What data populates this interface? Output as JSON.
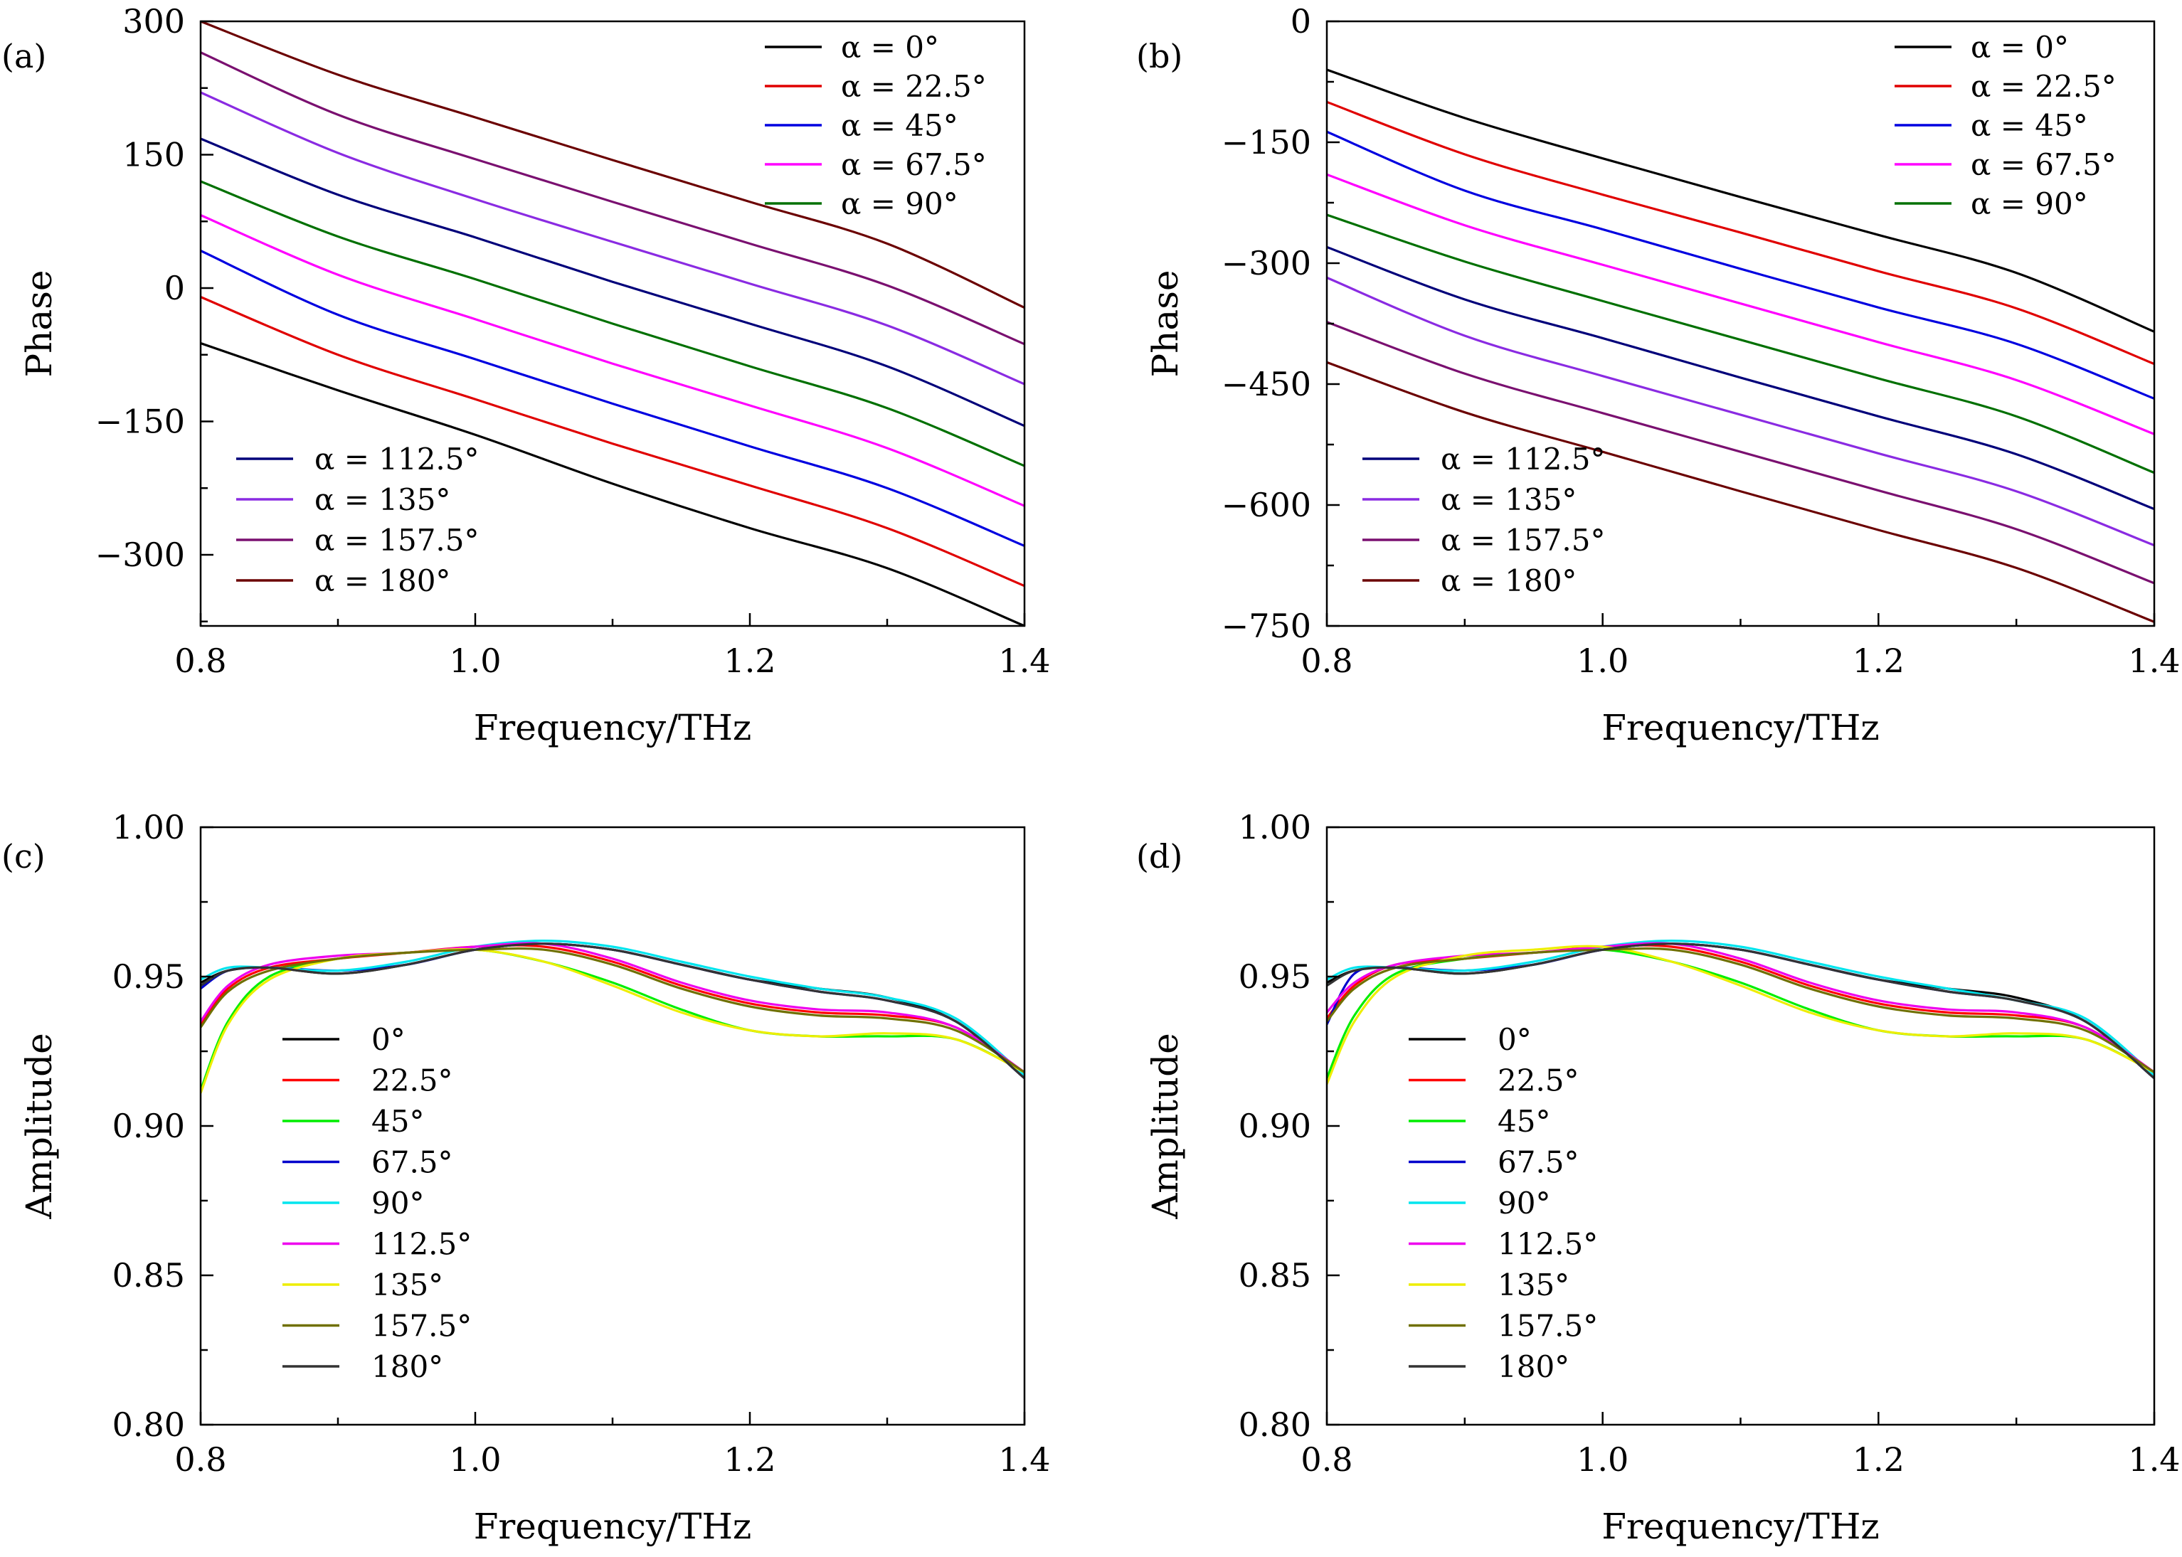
{
  "figure": {
    "panels": [
      "(a)",
      "(b)",
      "(c)",
      "(d)"
    ]
  },
  "chart_data": [
    {
      "panel": "(a)",
      "type": "line",
      "xlabel": "Frequency/THz",
      "ylabel": "Phase",
      "xlim": [
        0.8,
        1.4
      ],
      "ylim": [
        -380,
        300
      ],
      "xticks": [
        "0.8",
        "1.0",
        "1.2",
        "1.4"
      ],
      "yticks": [
        "300",
        "150",
        "0",
        "−150",
        "−300"
      ],
      "ytick_values": [
        300,
        150,
        0,
        -150,
        -300
      ],
      "grid": false,
      "legend": [
        {
          "position": "top-right",
          "entries": [
            "α = 0°",
            "α = 22.5°",
            "α = 45°",
            "α = 67.5°",
            "α = 90°"
          ]
        },
        {
          "position": "bottom-left",
          "entries": [
            "α = 112.5°",
            "α = 135°",
            "α = 157.5°",
            "α = 180°"
          ]
        }
      ],
      "x": [
        0.8,
        0.9,
        1.0,
        1.1,
        1.2,
        1.3,
        1.4
      ],
      "series": [
        {
          "name": "α = 0°",
          "color": "#000000",
          "values": [
            -62,
            -115,
            -165,
            -220,
            -270,
            -315,
            -380
          ]
        },
        {
          "name": "α = 22.5°",
          "color": "#e00000",
          "values": [
            -10,
            -75,
            -125,
            -175,
            -222,
            -270,
            -335
          ]
        },
        {
          "name": "α = 45°",
          "color": "#0000e0",
          "values": [
            42,
            -30,
            -80,
            -130,
            -178,
            -225,
            -290
          ]
        },
        {
          "name": "α = 67.5°",
          "color": "#ff00ff",
          "values": [
            82,
            15,
            -35,
            -85,
            -132,
            -180,
            -245
          ]
        },
        {
          "name": "α = 90°",
          "color": "#007000",
          "values": [
            120,
            58,
            10,
            -40,
            -88,
            -135,
            -200
          ]
        },
        {
          "name": "α = 112.5°",
          "color": "#00007a",
          "values": [
            168,
            105,
            57,
            7,
            -40,
            -88,
            -155
          ]
        },
        {
          "name": "α = 135°",
          "color": "#8a2be2",
          "values": [
            220,
            152,
            100,
            52,
            5,
            -42,
            -108
          ]
        },
        {
          "name": "α = 157.5°",
          "color": "#7a1070",
          "values": [
            265,
            195,
            145,
            97,
            50,
            3,
            -63
          ]
        },
        {
          "name": "α = 180°",
          "color": "#6b0000",
          "values": [
            300,
            240,
            192,
            144,
            97,
            50,
            -22
          ]
        }
      ]
    },
    {
      "panel": "(b)",
      "type": "line",
      "xlabel": "Frequency/THz",
      "ylabel": "Phase",
      "xlim": [
        0.8,
        1.4
      ],
      "ylim": [
        -750,
        0
      ],
      "xticks": [
        "0.8",
        "1.0",
        "1.2",
        "1.4"
      ],
      "yticks": [
        "0",
        "−150",
        "−300",
        "−450",
        "−600",
        "−750"
      ],
      "ytick_values": [
        0,
        -150,
        -300,
        -450,
        -600,
        -750
      ],
      "grid": false,
      "legend": [
        {
          "position": "top-right",
          "entries": [
            "α = 0°",
            "α = 22.5°",
            "α = 45°",
            "α = 67.5°",
            "α = 90°"
          ]
        },
        {
          "position": "bottom-left",
          "entries": [
            "α = 112.5°",
            "α = 135°",
            "α = 157.5°",
            "α = 180°"
          ]
        }
      ],
      "x": [
        0.8,
        0.9,
        1.0,
        1.1,
        1.2,
        1.3,
        1.4
      ],
      "series": [
        {
          "name": "α = 0°",
          "color": "#000000",
          "values": [
            -60,
            -120,
            -170,
            -218,
            -265,
            -312,
            -385
          ]
        },
        {
          "name": "α = 22.5°",
          "color": "#e00000",
          "values": [
            -100,
            -165,
            -215,
            -262,
            -310,
            -356,
            -425
          ]
        },
        {
          "name": "α = 45°",
          "color": "#0000e0",
          "values": [
            -137,
            -210,
            -258,
            -307,
            -355,
            -400,
            -468
          ]
        },
        {
          "name": "α = 67.5°",
          "color": "#ff00ff",
          "values": [
            -190,
            -253,
            -302,
            -350,
            -398,
            -445,
            -512
          ]
        },
        {
          "name": "α = 90°",
          "color": "#007000",
          "values": [
            -240,
            -298,
            -347,
            -395,
            -443,
            -490,
            -560
          ]
        },
        {
          "name": "α = 112.5°",
          "color": "#00007a",
          "values": [
            -280,
            -345,
            -393,
            -442,
            -490,
            -537,
            -605
          ]
        },
        {
          "name": "α = 135°",
          "color": "#8a2be2",
          "values": [
            -318,
            -390,
            -440,
            -488,
            -536,
            -583,
            -650
          ]
        },
        {
          "name": "α = 157.5°",
          "color": "#7a1070",
          "values": [
            -373,
            -437,
            -486,
            -534,
            -582,
            -630,
            -697
          ]
        },
        {
          "name": "α = 180°",
          "color": "#6b0000",
          "values": [
            -423,
            -485,
            -534,
            -583,
            -631,
            -678,
            -745
          ]
        }
      ]
    },
    {
      "panel": "(c)",
      "type": "line",
      "xlabel": "Frequency/THz",
      "ylabel": "Amplitude",
      "xlim": [
        0.8,
        1.4
      ],
      "ylim": [
        0.8,
        1.0
      ],
      "xticks": [
        "0.8",
        "1.0",
        "1.2",
        "1.4"
      ],
      "yticks": [
        "1.00",
        "0.95",
        "0.90",
        "0.85",
        "0.80"
      ],
      "ytick_values": [
        1.0,
        0.95,
        0.9,
        0.85,
        0.8
      ],
      "grid": false,
      "legend": [
        {
          "position": "left",
          "entries": [
            "0°",
            "22.5°",
            "45°",
            "67.5°",
            "90°",
            "112.5°",
            "135°",
            "157.5°",
            "180°"
          ]
        }
      ],
      "x": [
        0.8,
        0.82,
        0.85,
        0.9,
        0.95,
        1.0,
        1.05,
        1.1,
        1.15,
        1.2,
        1.25,
        1.3,
        1.35,
        1.4
      ],
      "series": [
        {
          "name": "0°",
          "color": "#000000",
          "values": [
            0.948,
            0.952,
            0.953,
            0.951,
            0.954,
            0.959,
            0.961,
            0.959,
            0.954,
            0.949,
            0.946,
            0.943,
            0.935,
            0.916
          ]
        },
        {
          "name": "22.5°",
          "color": "#ff0000",
          "values": [
            0.934,
            0.946,
            0.953,
            0.956,
            0.958,
            0.96,
            0.96,
            0.955,
            0.947,
            0.941,
            0.938,
            0.937,
            0.933,
            0.918
          ]
        },
        {
          "name": "45°",
          "color": "#00ee00",
          "values": [
            0.912,
            0.935,
            0.95,
            0.956,
            0.958,
            0.959,
            0.955,
            0.948,
            0.939,
            0.932,
            0.93,
            0.93,
            0.929,
            0.918
          ]
        },
        {
          "name": "67.5°",
          "color": "#0000cc",
          "values": [
            0.946,
            0.952,
            0.953,
            0.952,
            0.954,
            0.959,
            0.961,
            0.959,
            0.954,
            0.949,
            0.945,
            0.942,
            0.935,
            0.916
          ]
        },
        {
          "name": "90°",
          "color": "#00e5ee",
          "values": [
            0.949,
            0.953,
            0.953,
            0.952,
            0.955,
            0.96,
            0.962,
            0.96,
            0.955,
            0.95,
            0.946,
            0.943,
            0.936,
            0.917
          ]
        },
        {
          "name": "112.5°",
          "color": "#ee00ee",
          "values": [
            0.935,
            0.947,
            0.954,
            0.957,
            0.958,
            0.96,
            0.961,
            0.956,
            0.948,
            0.942,
            0.939,
            0.938,
            0.933,
            0.918
          ]
        },
        {
          "name": "135°",
          "color": "#eeee00",
          "values": [
            0.911,
            0.934,
            0.949,
            0.956,
            0.958,
            0.959,
            0.955,
            0.947,
            0.938,
            0.932,
            0.93,
            0.931,
            0.929,
            0.918
          ]
        },
        {
          "name": "157.5°",
          "color": "#707000",
          "values": [
            0.933,
            0.945,
            0.952,
            0.956,
            0.958,
            0.959,
            0.959,
            0.954,
            0.946,
            0.94,
            0.937,
            0.936,
            0.932,
            0.918
          ]
        },
        {
          "name": "180°",
          "color": "#333333",
          "values": [
            0.947,
            0.952,
            0.953,
            0.951,
            0.954,
            0.959,
            0.961,
            0.959,
            0.954,
            0.949,
            0.945,
            0.942,
            0.935,
            0.916
          ]
        }
      ]
    },
    {
      "panel": "(d)",
      "type": "line",
      "xlabel": "Frequency/THz",
      "ylabel": "Amplitude",
      "xlim": [
        0.8,
        1.4
      ],
      "ylim": [
        0.8,
        1.0
      ],
      "xticks": [
        "0.8",
        "1.0",
        "1.2",
        "1.4"
      ],
      "yticks": [
        "1.00",
        "0.95",
        "0.90",
        "0.85",
        "0.80"
      ],
      "ytick_values": [
        1.0,
        0.95,
        0.9,
        0.85,
        0.8
      ],
      "grid": false,
      "legend": [
        {
          "position": "left",
          "entries": [
            "0°",
            "22.5°",
            "45°",
            "67.5°",
            "90°",
            "112.5°",
            "135°",
            "157.5°",
            "180°"
          ]
        }
      ],
      "x": [
        0.8,
        0.82,
        0.85,
        0.9,
        0.95,
        1.0,
        1.05,
        1.1,
        1.15,
        1.2,
        1.25,
        1.3,
        1.35,
        1.4
      ],
      "series": [
        {
          "name": "0°",
          "color": "#000000",
          "values": [
            0.948,
            0.952,
            0.953,
            0.951,
            0.954,
            0.959,
            0.961,
            0.959,
            0.954,
            0.949,
            0.946,
            0.943,
            0.935,
            0.916
          ]
        },
        {
          "name": "22.5°",
          "color": "#ff0000",
          "values": [
            0.936,
            0.947,
            0.954,
            0.956,
            0.958,
            0.96,
            0.96,
            0.955,
            0.947,
            0.941,
            0.938,
            0.937,
            0.933,
            0.918
          ]
        },
        {
          "name": "45°",
          "color": "#00ee00",
          "values": [
            0.916,
            0.937,
            0.951,
            0.956,
            0.958,
            0.959,
            0.955,
            0.948,
            0.939,
            0.932,
            0.93,
            0.93,
            0.929,
            0.918
          ]
        },
        {
          "name": "67.5°",
          "color": "#0000cc",
          "values": [
            0.934,
            0.951,
            0.953,
            0.952,
            0.954,
            0.959,
            0.961,
            0.959,
            0.954,
            0.949,
            0.945,
            0.942,
            0.935,
            0.916
          ]
        },
        {
          "name": "90°",
          "color": "#00e5ee",
          "values": [
            0.949,
            0.953,
            0.953,
            0.952,
            0.955,
            0.96,
            0.962,
            0.96,
            0.955,
            0.95,
            0.946,
            0.942,
            0.936,
            0.917
          ]
        },
        {
          "name": "112.5°",
          "color": "#ee00ee",
          "values": [
            0.938,
            0.948,
            0.954,
            0.957,
            0.958,
            0.96,
            0.961,
            0.956,
            0.948,
            0.942,
            0.939,
            0.938,
            0.933,
            0.918
          ]
        },
        {
          "name": "135°",
          "color": "#eeee00",
          "values": [
            0.914,
            0.935,
            0.95,
            0.957,
            0.959,
            0.96,
            0.955,
            0.947,
            0.938,
            0.932,
            0.93,
            0.931,
            0.929,
            0.918
          ]
        },
        {
          "name": "157.5°",
          "color": "#707000",
          "values": [
            0.935,
            0.946,
            0.953,
            0.956,
            0.958,
            0.959,
            0.959,
            0.954,
            0.946,
            0.94,
            0.937,
            0.936,
            0.932,
            0.918
          ]
        },
        {
          "name": "180°",
          "color": "#333333",
          "values": [
            0.947,
            0.952,
            0.953,
            0.951,
            0.954,
            0.959,
            0.961,
            0.959,
            0.954,
            0.949,
            0.945,
            0.942,
            0.935,
            0.916
          ]
        }
      ]
    }
  ]
}
